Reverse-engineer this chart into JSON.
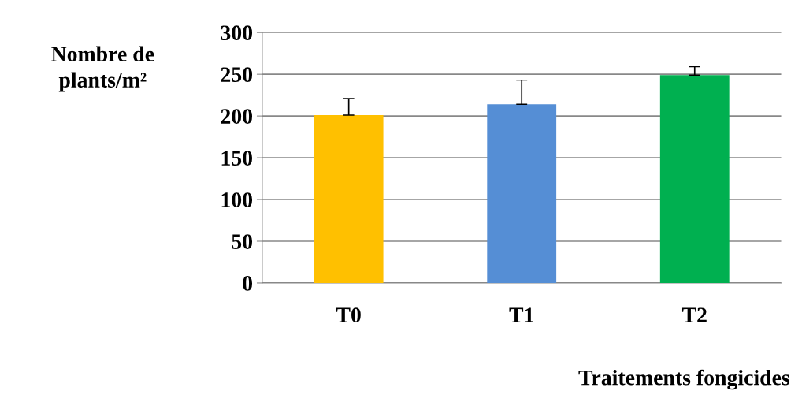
{
  "chart_data": {
    "type": "bar",
    "xlabel": "Traitements fongicides",
    "ylabel": "Nombre de plants/m²",
    "categories": [
      "T0",
      "T1",
      "T2"
    ],
    "values": [
      201,
      214,
      249
    ],
    "errors": [
      20,
      29,
      10
    ],
    "colors": [
      "#ffc000",
      "#558ed5",
      "#00b050"
    ],
    "ylim": [
      0,
      300
    ],
    "yticks": [
      0,
      50,
      100,
      150,
      200,
      250,
      300
    ],
    "grid": "y",
    "legend": false
  }
}
